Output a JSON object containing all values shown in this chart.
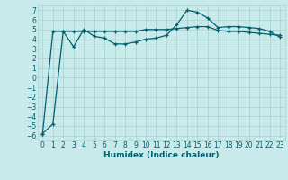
{
  "xlabel": "Humidex (Indice chaleur)",
  "ylabel": "",
  "background_color": "#c8eaea",
  "grid_color": "#aed4d4",
  "line_color": "#006070",
  "xlim": [
    -0.5,
    23.5
  ],
  "ylim": [
    -6.5,
    7.5
  ],
  "yticks": [
    -6,
    -5,
    -4,
    -3,
    -2,
    -1,
    0,
    1,
    2,
    3,
    4,
    5,
    6,
    7
  ],
  "xticks": [
    0,
    1,
    2,
    3,
    4,
    5,
    6,
    7,
    8,
    9,
    10,
    11,
    12,
    13,
    14,
    15,
    16,
    17,
    18,
    19,
    20,
    21,
    22,
    23
  ],
  "line1_x": [
    0,
    1,
    2,
    3,
    4,
    5,
    6,
    7,
    8,
    9,
    10,
    11,
    12,
    13,
    14,
    15,
    16,
    17,
    18,
    19,
    20,
    21,
    22,
    23
  ],
  "line1_y": [
    -5.8,
    -4.8,
    4.8,
    3.2,
    5.0,
    4.3,
    4.1,
    3.5,
    3.5,
    3.7,
    4.0,
    4.1,
    4.4,
    5.5,
    7.0,
    6.8,
    6.2,
    5.2,
    5.3,
    5.3,
    5.2,
    5.1,
    4.8,
    4.2
  ],
  "line2_x": [
    0,
    1,
    2,
    3,
    4,
    5,
    6,
    7,
    8,
    9,
    10,
    11,
    12,
    13,
    14,
    15,
    16,
    17,
    18,
    19,
    20,
    21,
    22,
    23
  ],
  "line2_y": [
    -5.8,
    4.8,
    4.8,
    4.8,
    4.8,
    4.8,
    4.8,
    4.8,
    4.8,
    4.8,
    5.0,
    5.0,
    5.0,
    5.1,
    5.2,
    5.3,
    5.3,
    4.9,
    4.8,
    4.8,
    4.7,
    4.6,
    4.5,
    4.4
  ],
  "font_size_ticks": 5.5,
  "font_size_xlabel": 6.5
}
